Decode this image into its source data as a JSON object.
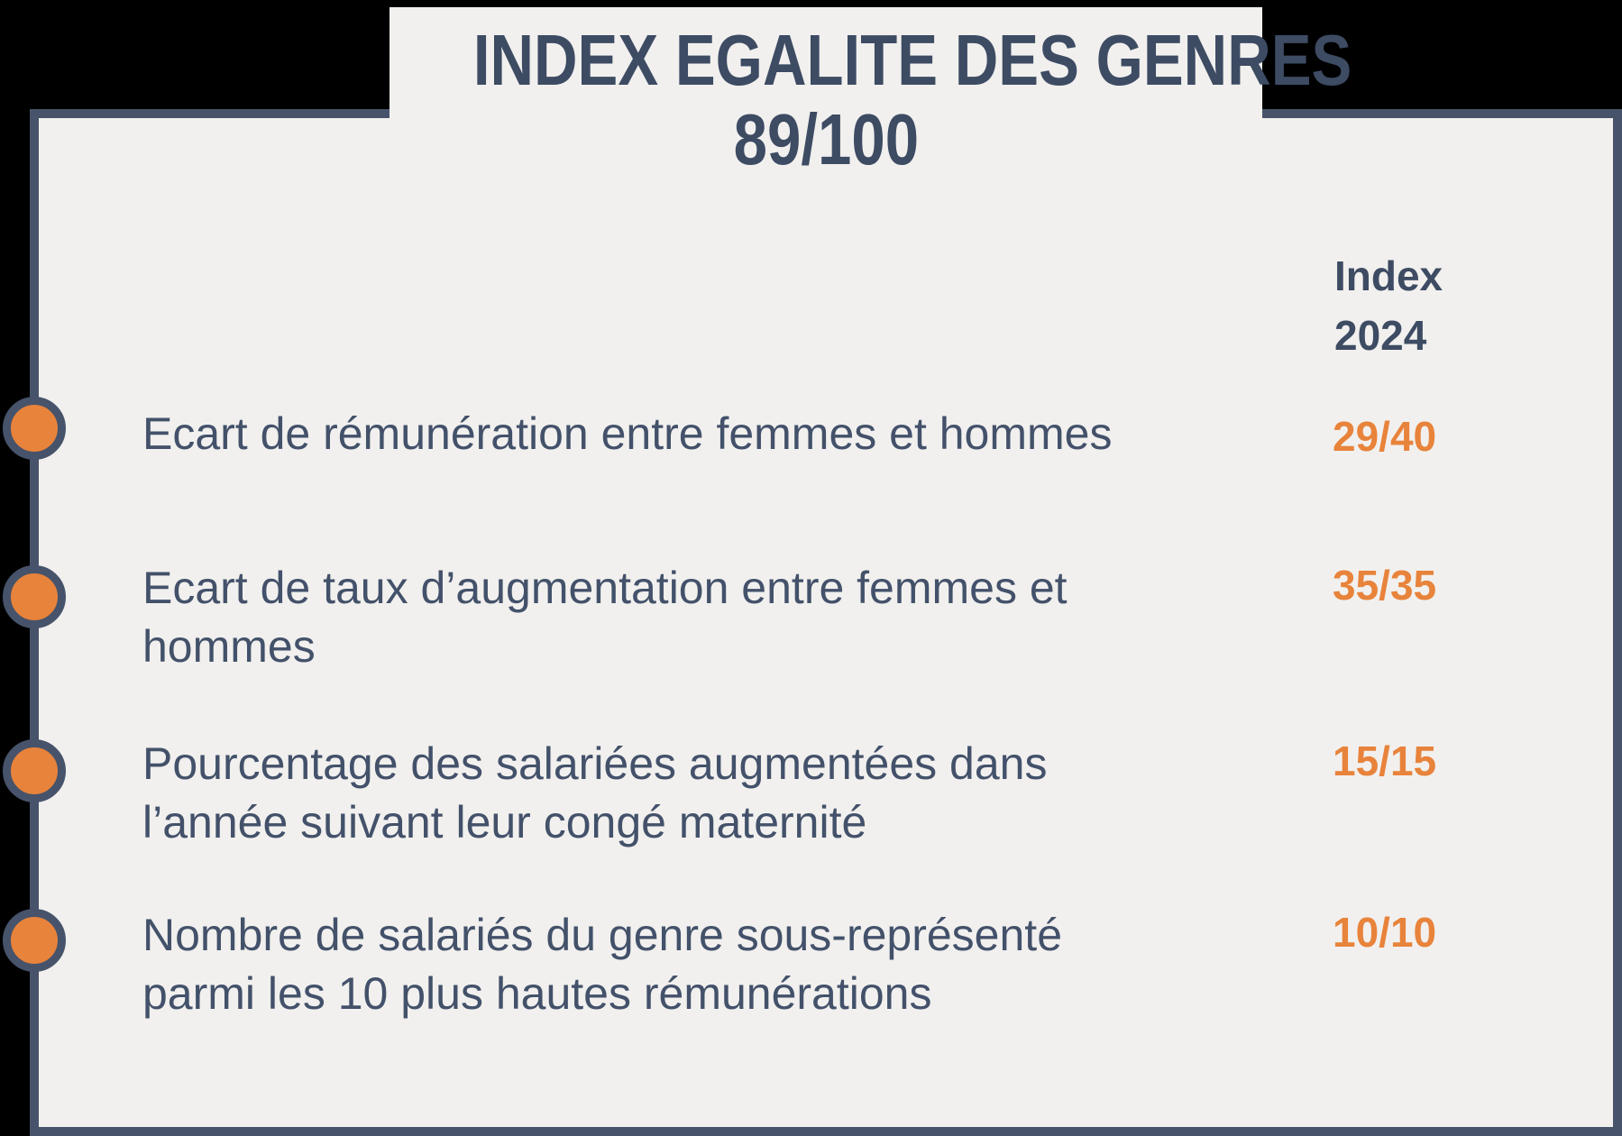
{
  "colors": {
    "page_background": "#000000",
    "card_background": "#F1F0EE",
    "border_slate": "#47536A",
    "title_text": "#3D4B63",
    "body_text": "#43516A",
    "accent_orange": "#E8833B"
  },
  "banner": {
    "title": "INDEX EGALITE DES GENRES",
    "score": "89/100"
  },
  "table": {
    "column_header_lines": [
      "Index",
      "2024"
    ],
    "rows": [
      {
        "label_lines": [
          "Ecart de rémunération entre femmes et hommes"
        ],
        "value": "29/40"
      },
      {
        "label_lines": [
          "Ecart de taux d’augmentation entre femmes et",
          "hommes"
        ],
        "value": "35/35"
      },
      {
        "label_lines": [
          "Pourcentage des salariées augmentées dans",
          "l’année suivant leur congé maternité"
        ],
        "value": "15/15"
      },
      {
        "label_lines": [
          "Nombre de salariés du genre sous-représenté",
          "parmi les 10 plus hautes rémunérations"
        ],
        "value": "10/10"
      }
    ]
  },
  "decorations": {
    "bullet_icon": "orange-circle-marker"
  }
}
